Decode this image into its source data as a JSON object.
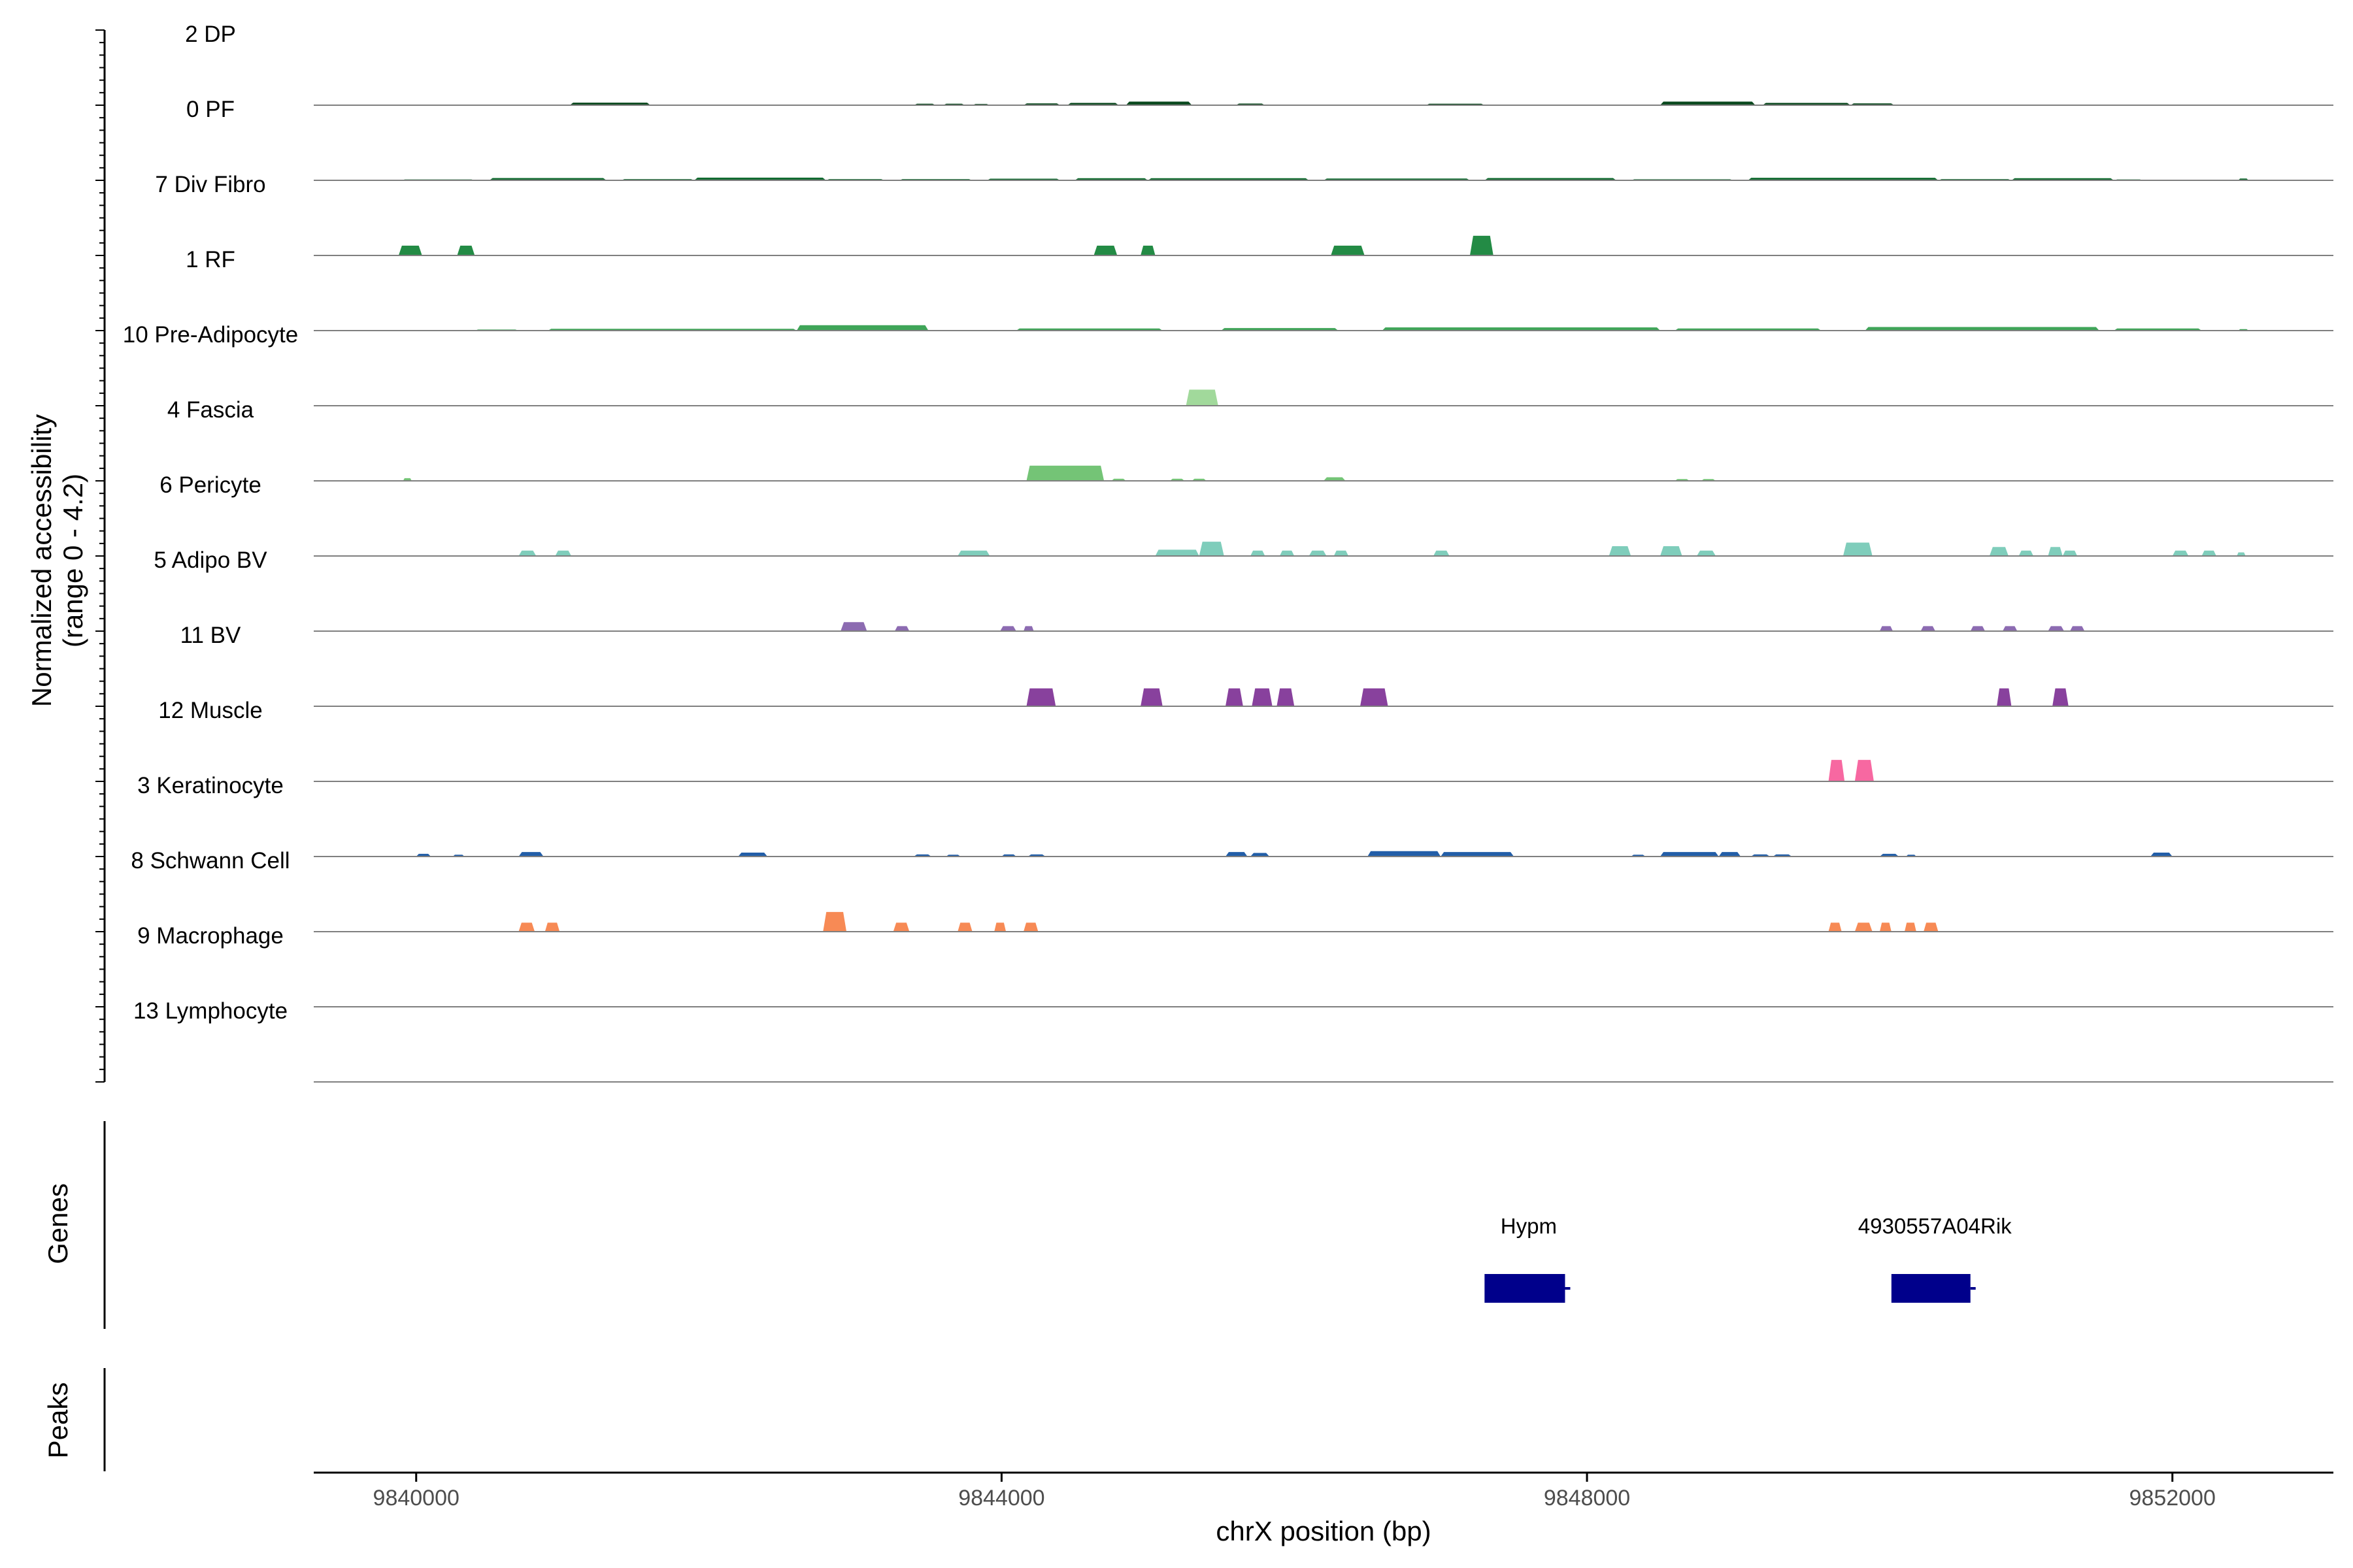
{
  "chart_data": {
    "type": "area",
    "title": "",
    "ylabel_lines": [
      "Normalized accessibility",
      "(range 0 - 4.2)"
    ],
    "xlabel": "chrX position (bp)",
    "xlim": [
      9839300,
      9853100
    ],
    "x_ticks": [
      {
        "value": 9840000,
        "label": "9840000"
      },
      {
        "value": 9844000,
        "label": "9844000"
      },
      {
        "value": 9848000,
        "label": "9848000"
      },
      {
        "value": 9852000,
        "label": "9852000"
      }
    ],
    "y_range": [
      0,
      4.2
    ],
    "tracks": [
      {
        "label": "2 DP",
        "color": "#0b4a1f",
        "peaks": [
          {
            "start": 9841050,
            "end": 9841600,
            "height": 0.14
          },
          {
            "start": 9843400,
            "end": 9843550,
            "height": 0.08
          },
          {
            "start": 9843600,
            "end": 9843750,
            "height": 0.08
          },
          {
            "start": 9843800,
            "end": 9843920,
            "height": 0.07
          },
          {
            "start": 9844150,
            "end": 9844400,
            "height": 0.1
          },
          {
            "start": 9844450,
            "end": 9844800,
            "height": 0.13
          },
          {
            "start": 9844850,
            "end": 9845300,
            "height": 0.2
          },
          {
            "start": 9845600,
            "end": 9845800,
            "height": 0.09
          },
          {
            "start": 9846900,
            "end": 9847300,
            "height": 0.08
          },
          {
            "start": 9848500,
            "end": 9849150,
            "height": 0.2
          },
          {
            "start": 9849200,
            "end": 9849800,
            "height": 0.13
          },
          {
            "start": 9849800,
            "end": 9850100,
            "height": 0.1
          }
        ]
      },
      {
        "label": "0 PF",
        "color": "#116b30",
        "peaks": [
          {
            "start": 9839900,
            "end": 9840400,
            "height": 0.05
          },
          {
            "start": 9840500,
            "end": 9841300,
            "height": 0.13
          },
          {
            "start": 9841400,
            "end": 9841900,
            "height": 0.07
          },
          {
            "start": 9841900,
            "end": 9842800,
            "height": 0.15
          },
          {
            "start": 9842800,
            "end": 9843200,
            "height": 0.07
          },
          {
            "start": 9843300,
            "end": 9843800,
            "height": 0.07
          },
          {
            "start": 9843900,
            "end": 9844400,
            "height": 0.09
          },
          {
            "start": 9844500,
            "end": 9845000,
            "height": 0.12
          },
          {
            "start": 9845000,
            "end": 9846100,
            "height": 0.12
          },
          {
            "start": 9846200,
            "end": 9847200,
            "height": 0.1
          },
          {
            "start": 9847300,
            "end": 9848200,
            "height": 0.13
          },
          {
            "start": 9848300,
            "end": 9849000,
            "height": 0.06
          },
          {
            "start": 9849100,
            "end": 9850400,
            "height": 0.14
          },
          {
            "start": 9850400,
            "end": 9850900,
            "height": 0.07
          },
          {
            "start": 9850900,
            "end": 9851600,
            "height": 0.12
          },
          {
            "start": 9851600,
            "end": 9851800,
            "height": 0.05
          },
          {
            "start": 9852450,
            "end": 9852520,
            "height": 0.1
          }
        ]
      },
      {
        "label": "7 Div Fibro",
        "color": "#238b45",
        "peaks": [
          {
            "start": 9839880,
            "end": 9840040,
            "height": 0.55
          },
          {
            "start": 9840280,
            "end": 9840400,
            "height": 0.55
          },
          {
            "start": 9844630,
            "end": 9844790,
            "height": 0.55
          },
          {
            "start": 9844950,
            "end": 9845050,
            "height": 0.55
          },
          {
            "start": 9846250,
            "end": 9846480,
            "height": 0.55
          },
          {
            "start": 9847200,
            "end": 9847360,
            "height": 1.1
          }
        ]
      },
      {
        "label": "1 RF",
        "color": "#3fa558",
        "peaks": [
          {
            "start": 9840400,
            "end": 9840700,
            "height": 0.06
          },
          {
            "start": 9840900,
            "end": 9842600,
            "height": 0.1
          },
          {
            "start": 9842600,
            "end": 9843500,
            "height": 0.3
          },
          {
            "start": 9844100,
            "end": 9845100,
            "height": 0.12
          },
          {
            "start": 9845500,
            "end": 9846300,
            "height": 0.14
          },
          {
            "start": 9846600,
            "end": 9848500,
            "height": 0.18
          },
          {
            "start": 9848600,
            "end": 9849600,
            "height": 0.12
          },
          {
            "start": 9849900,
            "end": 9851500,
            "height": 0.2
          },
          {
            "start": 9851600,
            "end": 9852200,
            "height": 0.12
          },
          {
            "start": 9852450,
            "end": 9852520,
            "height": 0.08
          }
        ]
      },
      {
        "label": "10 Pre-Adipocyte",
        "color": "#a1d99b",
        "peaks": [
          {
            "start": 9845260,
            "end": 9845480,
            "height": 0.9
          }
        ]
      },
      {
        "label": "4 Fascia",
        "color": "#74c476",
        "peaks": [
          {
            "start": 9839910,
            "end": 9839970,
            "height": 0.15
          },
          {
            "start": 9844170,
            "end": 9844700,
            "height": 0.85
          },
          {
            "start": 9844750,
            "end": 9844850,
            "height": 0.12
          },
          {
            "start": 9845150,
            "end": 9845250,
            "height": 0.12
          },
          {
            "start": 9845300,
            "end": 9845400,
            "height": 0.12
          },
          {
            "start": 9846200,
            "end": 9846350,
            "height": 0.2
          },
          {
            "start": 9848600,
            "end": 9848700,
            "height": 0.1
          },
          {
            "start": 9848780,
            "end": 9848880,
            "height": 0.1
          }
        ]
      },
      {
        "label": "6 Pericyte",
        "color": "#7fcdbb",
        "peaks": [
          {
            "start": 9840700,
            "end": 9840820,
            "height": 0.3
          },
          {
            "start": 9840950,
            "end": 9841060,
            "height": 0.3
          },
          {
            "start": 9843700,
            "end": 9843920,
            "height": 0.3
          },
          {
            "start": 9845050,
            "end": 9845350,
            "height": 0.35
          },
          {
            "start": 9845350,
            "end": 9845520,
            "height": 0.8
          },
          {
            "start": 9845700,
            "end": 9845800,
            "height": 0.3
          },
          {
            "start": 9845900,
            "end": 9846000,
            "height": 0.3
          },
          {
            "start": 9846100,
            "end": 9846220,
            "height": 0.3
          },
          {
            "start": 9846270,
            "end": 9846370,
            "height": 0.3
          },
          {
            "start": 9846950,
            "end": 9847060,
            "height": 0.3
          },
          {
            "start": 9848150,
            "end": 9848300,
            "height": 0.55
          },
          {
            "start": 9848500,
            "end": 9848650,
            "height": 0.55
          },
          {
            "start": 9848750,
            "end": 9848880,
            "height": 0.3
          },
          {
            "start": 9849750,
            "end": 9849950,
            "height": 0.75
          },
          {
            "start": 9850750,
            "end": 9850880,
            "height": 0.5
          },
          {
            "start": 9850950,
            "end": 9851050,
            "height": 0.3
          },
          {
            "start": 9851150,
            "end": 9851250,
            "height": 0.5
          },
          {
            "start": 9851250,
            "end": 9851350,
            "height": 0.3
          },
          {
            "start": 9852000,
            "end": 9852110,
            "height": 0.3
          },
          {
            "start": 9852200,
            "end": 9852300,
            "height": 0.3
          },
          {
            "start": 9852440,
            "end": 9852500,
            "height": 0.2
          }
        ]
      },
      {
        "label": "5 Adipo BV",
        "color": "#8c6bb1",
        "peaks": [
          {
            "start": 9842900,
            "end": 9843080,
            "height": 0.5
          },
          {
            "start": 9843270,
            "end": 9843370,
            "height": 0.28
          },
          {
            "start": 9843990,
            "end": 9844100,
            "height": 0.28
          },
          {
            "start": 9844150,
            "end": 9844220,
            "height": 0.28
          },
          {
            "start": 9850000,
            "end": 9850090,
            "height": 0.28
          },
          {
            "start": 9850280,
            "end": 9850380,
            "height": 0.28
          },
          {
            "start": 9850620,
            "end": 9850720,
            "height": 0.28
          },
          {
            "start": 9850840,
            "end": 9850940,
            "height": 0.28
          },
          {
            "start": 9851150,
            "end": 9851260,
            "height": 0.28
          },
          {
            "start": 9851300,
            "end": 9851400,
            "height": 0.28
          }
        ]
      },
      {
        "label": "11 BV",
        "color": "#88419d",
        "peaks": [
          {
            "start": 9844170,
            "end": 9844370,
            "height": 1.0
          },
          {
            "start": 9844950,
            "end": 9845100,
            "height": 1.0
          },
          {
            "start": 9845530,
            "end": 9845650,
            "height": 1.0
          },
          {
            "start": 9845710,
            "end": 9845850,
            "height": 1.0
          },
          {
            "start": 9845880,
            "end": 9846000,
            "height": 1.0
          },
          {
            "start": 9846450,
            "end": 9846640,
            "height": 1.0
          },
          {
            "start": 9850800,
            "end": 9850900,
            "height": 1.0
          },
          {
            "start": 9851180,
            "end": 9851290,
            "height": 1.0
          }
        ]
      },
      {
        "label": "12 Muscle",
        "color": "#f768a1",
        "peaks": [
          {
            "start": 9849650,
            "end": 9849760,
            "height": 1.2
          },
          {
            "start": 9849830,
            "end": 9849960,
            "height": 1.2
          }
        ]
      },
      {
        "label": "3 Keratinocyte",
        "color": "#225ea8",
        "peaks": [
          {
            "start": 9840000,
            "end": 9840100,
            "height": 0.15
          },
          {
            "start": 9840250,
            "end": 9840330,
            "height": 0.1
          },
          {
            "start": 9840700,
            "end": 9840870,
            "height": 0.25
          },
          {
            "start": 9842200,
            "end": 9842400,
            "height": 0.22
          },
          {
            "start": 9843400,
            "end": 9843520,
            "height": 0.12
          },
          {
            "start": 9843620,
            "end": 9843720,
            "height": 0.1
          },
          {
            "start": 9844000,
            "end": 9844100,
            "height": 0.12
          },
          {
            "start": 9844180,
            "end": 9844300,
            "height": 0.12
          },
          {
            "start": 9845530,
            "end": 9845680,
            "height": 0.25
          },
          {
            "start": 9845700,
            "end": 9845830,
            "height": 0.2
          },
          {
            "start": 9846500,
            "end": 9847000,
            "height": 0.3
          },
          {
            "start": 9847000,
            "end": 9847500,
            "height": 0.25
          },
          {
            "start": 9848300,
            "end": 9848400,
            "height": 0.1
          },
          {
            "start": 9848500,
            "end": 9848900,
            "height": 0.25
          },
          {
            "start": 9848900,
            "end": 9849050,
            "height": 0.25
          },
          {
            "start": 9849120,
            "end": 9849250,
            "height": 0.12
          },
          {
            "start": 9849270,
            "end": 9849400,
            "height": 0.12
          },
          {
            "start": 9850000,
            "end": 9850130,
            "height": 0.15
          },
          {
            "start": 9850180,
            "end": 9850250,
            "height": 0.1
          },
          {
            "start": 9851850,
            "end": 9852000,
            "height": 0.22
          }
        ]
      },
      {
        "label": "8 Schwann Cell",
        "color": "#f78a55",
        "peaks": [
          {
            "start": 9840700,
            "end": 9840810,
            "height": 0.5
          },
          {
            "start": 9840880,
            "end": 9840980,
            "height": 0.5
          },
          {
            "start": 9842780,
            "end": 9842940,
            "height": 1.1
          },
          {
            "start": 9843260,
            "end": 9843370,
            "height": 0.5
          },
          {
            "start": 9843700,
            "end": 9843800,
            "height": 0.5
          },
          {
            "start": 9843950,
            "end": 9844030,
            "height": 0.5
          },
          {
            "start": 9844150,
            "end": 9844250,
            "height": 0.5
          },
          {
            "start": 9849650,
            "end": 9849740,
            "height": 0.5
          },
          {
            "start": 9849830,
            "end": 9849950,
            "height": 0.5
          },
          {
            "start": 9850000,
            "end": 9850080,
            "height": 0.5
          },
          {
            "start": 9850170,
            "end": 9850250,
            "height": 0.5
          },
          {
            "start": 9850300,
            "end": 9850400,
            "height": 0.5
          }
        ]
      },
      {
        "label": "9 Macrophage",
        "color": "#555555",
        "peaks": []
      },
      {
        "label": "13 Lymphocyte",
        "color": "#555555",
        "peaks": []
      }
    ],
    "genes_label": "Genes",
    "genes": [
      {
        "name": "Hypm",
        "start": 9847300,
        "end": 9847850,
        "color": "#00008b"
      },
      {
        "name": "4930557A04Rik",
        "start": 9850080,
        "end": 9850620,
        "color": "#00008b"
      }
    ],
    "peaks_label": "Peaks",
    "grid": false
  }
}
